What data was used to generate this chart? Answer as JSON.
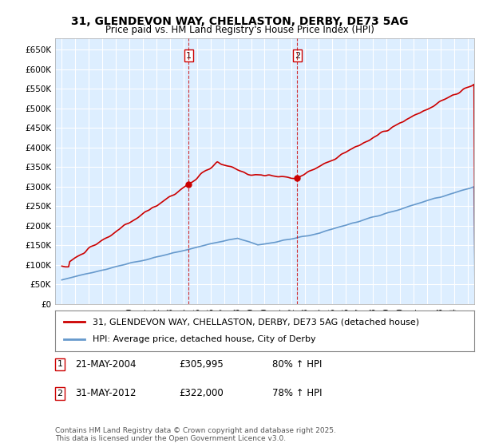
{
  "title1": "31, GLENDEVON WAY, CHELLASTON, DERBY, DE73 5AG",
  "title2": "Price paid vs. HM Land Registry's House Price Index (HPI)",
  "ylabel": "",
  "ylim": [
    0,
    680000
  ],
  "yticks": [
    0,
    50000,
    100000,
    150000,
    200000,
    250000,
    300000,
    350000,
    400000,
    450000,
    500000,
    550000,
    600000,
    650000
  ],
  "ytick_labels": [
    "£0",
    "£50K",
    "£100K",
    "£150K",
    "£200K",
    "£250K",
    "£300K",
    "£350K",
    "£400K",
    "£450K",
    "£500K",
    "£550K",
    "£600K",
    "£650K"
  ],
  "xlim_start": 1994.5,
  "xlim_end": 2025.5,
  "transaction1_x": 2004.388,
  "transaction1_y": 305995,
  "transaction1_label": "1",
  "transaction2_x": 2012.414,
  "transaction2_y": 322000,
  "transaction2_label": "2",
  "red_line_color": "#cc0000",
  "blue_line_color": "#6699cc",
  "vline_color": "#cc0000",
  "bg_color": "#ddeeff",
  "plot_bg_color": "#ddeeff",
  "grid_color": "#ffffff",
  "legend_line1": "31, GLENDEVON WAY, CHELLASTON, DERBY, DE73 5AG (detached house)",
  "legend_line2": "HPI: Average price, detached house, City of Derby",
  "annotation1_date": "21-MAY-2004",
  "annotation1_price": "£305,995",
  "annotation1_hpi": "80% ↑ HPI",
  "annotation2_date": "31-MAY-2012",
  "annotation2_price": "£322,000",
  "annotation2_hpi": "78% ↑ HPI",
  "footer": "Contains HM Land Registry data © Crown copyright and database right 2025.\nThis data is licensed under the Open Government Licence v3.0.",
  "title_fontsize": 10,
  "subtitle_fontsize": 9
}
